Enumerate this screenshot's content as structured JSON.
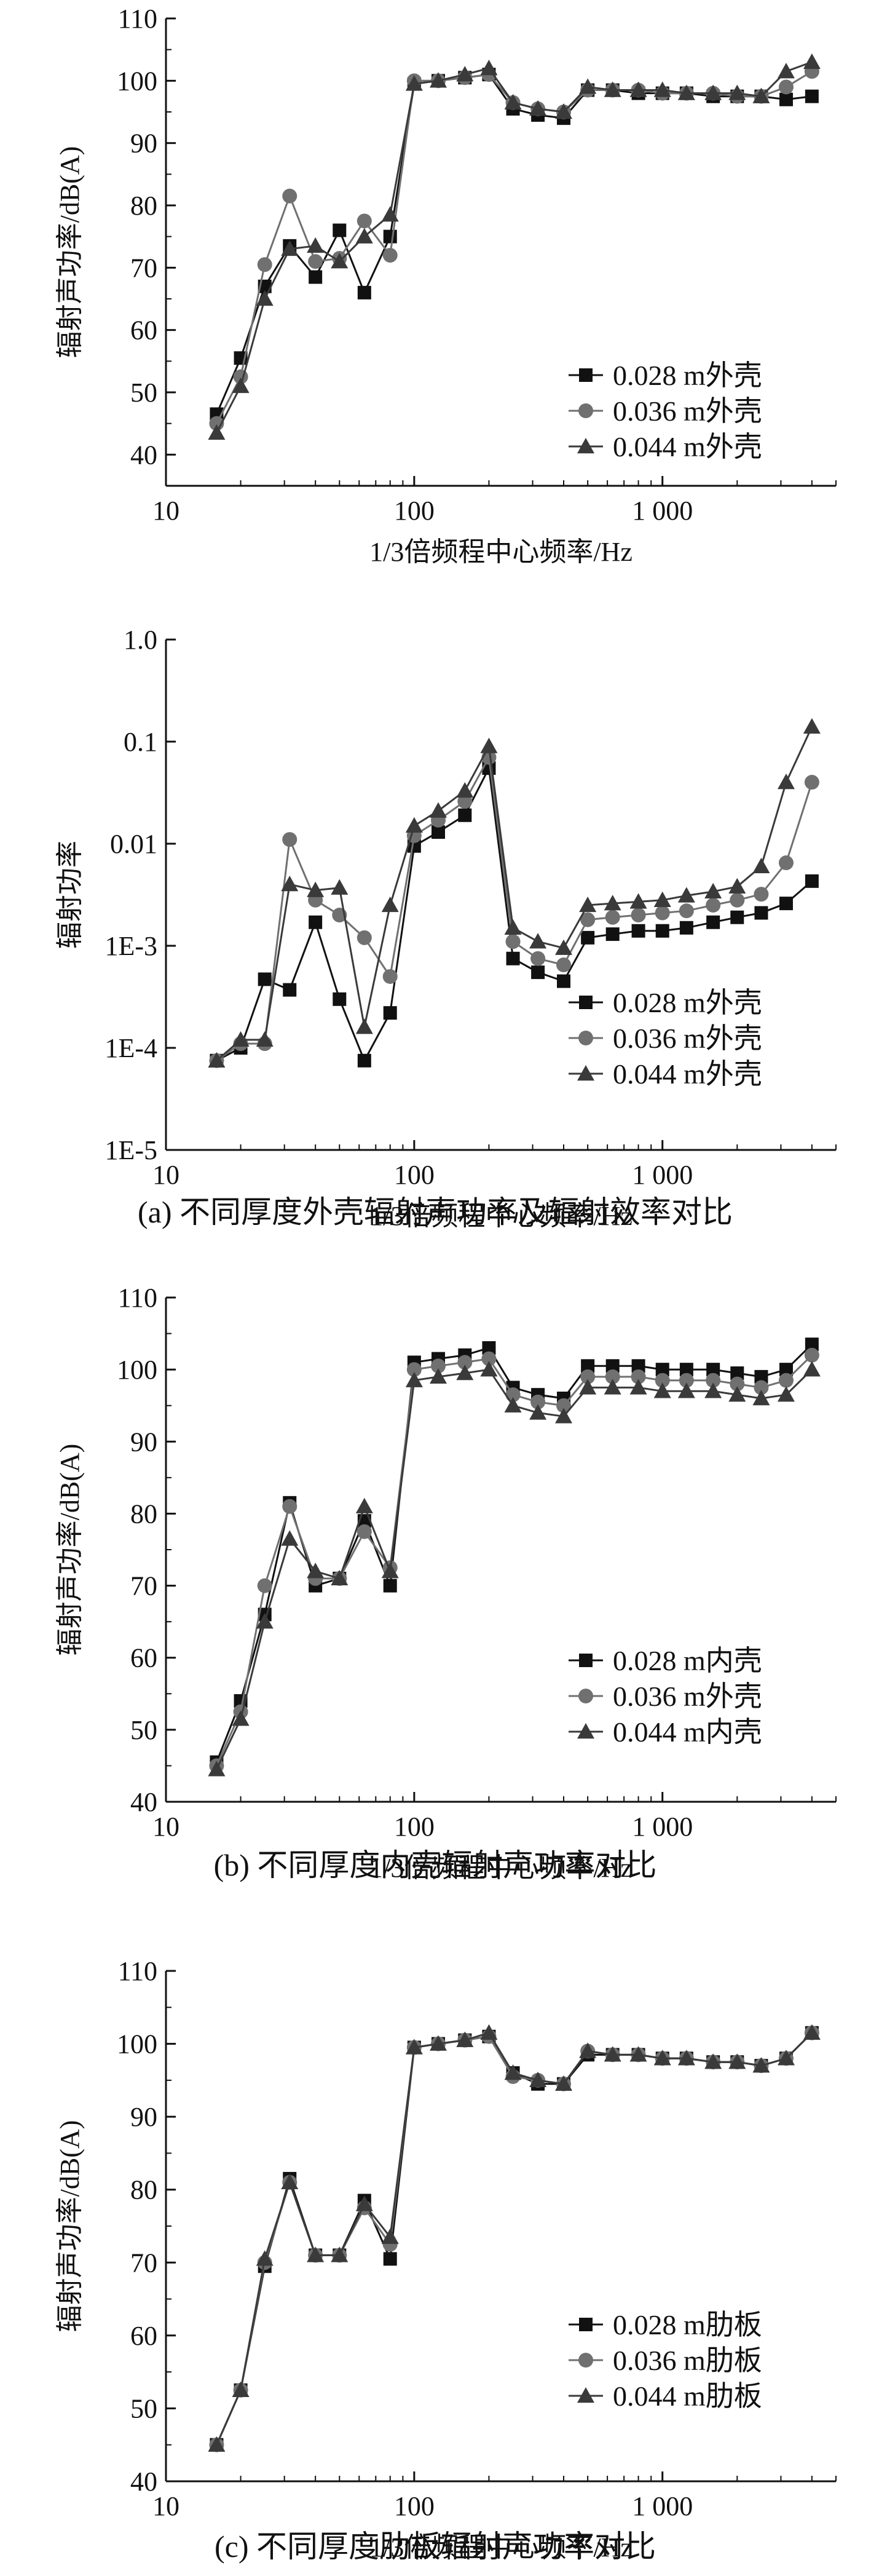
{
  "colors": {
    "axis": "#111111",
    "series_0028": "#111111",
    "series_0036": "#707070",
    "series_0044": "#3a3a3a"
  },
  "x_tick_labels": [
    "10",
    "100",
    "1 000"
  ],
  "x_axis_label": "1/3倍频程中心频率/Hz",
  "captions": {
    "a": "(a) 不同厚度外壳辐射声功率及辐射效率对比",
    "b": "(b) 不同厚度内壳辐射声功率对比",
    "c": "(c) 不同厚度肋板辐射声功率对比"
  },
  "chart_data": [
    {
      "id": "a-power",
      "type": "line",
      "x_scale": "log",
      "xlim": [
        10,
        5000
      ],
      "ylim": [
        35,
        110
      ],
      "yticks": [
        40,
        50,
        60,
        70,
        80,
        90,
        100,
        110
      ],
      "ytick_labels": [
        "40",
        "50",
        "60",
        "70",
        "80",
        "90",
        "100",
        "110"
      ],
      "xlabel": "1/3倍频程中心频率/Hz",
      "ylabel": "辐射声功率/dB(A)",
      "legend_position": "bottom-right",
      "x": [
        16,
        20,
        25,
        31.5,
        40,
        50,
        63,
        80,
        100,
        125,
        160,
        200,
        250,
        315,
        400,
        500,
        630,
        800,
        1000,
        1250,
        1600,
        2000,
        2500,
        3150,
        4000
      ],
      "series": [
        {
          "name": "0.028 m外壳",
          "marker": "square",
          "values": [
            46.5,
            55.5,
            67,
            73.5,
            68.5,
            76,
            66,
            75,
            99.5,
            100,
            100.5,
            101,
            95.5,
            94.5,
            94,
            98.5,
            98.5,
            98,
            98,
            98,
            97.5,
            97.5,
            97.5,
            97,
            97.5
          ]
        },
        {
          "name": "0.036 m外壳",
          "marker": "circle",
          "values": [
            45,
            52.5,
            70.5,
            81.5,
            71,
            71.5,
            77.5,
            72,
            100,
            100,
            100.5,
            101,
            96.5,
            95.5,
            95,
            98.5,
            98.5,
            98.5,
            98,
            98,
            98,
            97.5,
            97.5,
            99,
            101.5
          ]
        },
        {
          "name": "0.044 m外壳",
          "marker": "triangle",
          "values": [
            43.5,
            51,
            65,
            73,
            73.5,
            71,
            75,
            78.5,
            99.5,
            100,
            101,
            102,
            96.5,
            95.5,
            95,
            99,
            98.5,
            98.5,
            98.5,
            98,
            98,
            98,
            97.5,
            101.5,
            103
          ]
        }
      ]
    },
    {
      "id": "a-efficiency",
      "type": "line",
      "x_scale": "log",
      "y_scale": "log",
      "xlim": [
        10,
        5000
      ],
      "ylim": [
        1e-05,
        1.0
      ],
      "yticks": [
        1e-05,
        0.0001,
        0.001,
        0.01,
        0.1,
        1.0
      ],
      "ytick_labels": [
        "1E-5",
        "1E-4",
        "1E-3",
        "0.01",
        "0.1",
        "1.0"
      ],
      "xlabel": "1/3倍频程中心频率/Hz",
      "ylabel": "辐射功率",
      "legend_position": "bottom-right",
      "x": [
        16,
        20,
        25,
        31.5,
        40,
        50,
        63,
        80,
        100,
        125,
        160,
        200,
        250,
        315,
        400,
        500,
        630,
        800,
        1000,
        1250,
        1600,
        2000,
        2500,
        3150,
        4000
      ],
      "series": [
        {
          "name": "0.028 m外壳",
          "marker": "square",
          "values": [
            7.5e-05,
            0.0001,
            0.00047,
            0.00037,
            0.0017,
            0.0003,
            7.5e-05,
            0.00022,
            0.0095,
            0.013,
            0.019,
            0.055,
            0.00075,
            0.00055,
            0.00045,
            0.0012,
            0.0013,
            0.0014,
            0.0014,
            0.0015,
            0.0017,
            0.0019,
            0.0021,
            0.0026,
            0.0043
          ]
        },
        {
          "name": "0.036 m外壳",
          "marker": "circle",
          "values": [
            7.5e-05,
            0.00011,
            0.00011,
            0.011,
            0.0028,
            0.002,
            0.0012,
            0.0005,
            0.012,
            0.017,
            0.026,
            0.07,
            0.0011,
            0.00075,
            0.00065,
            0.0018,
            0.0019,
            0.002,
            0.0021,
            0.0022,
            0.0025,
            0.0028,
            0.0032,
            0.0065,
            0.04
          ]
        },
        {
          "name": "0.044 m外壳",
          "marker": "triangle",
          "values": [
            7.5e-05,
            0.00012,
            0.00012,
            0.004,
            0.0035,
            0.0037,
            0.00016,
            0.0025,
            0.015,
            0.021,
            0.033,
            0.09,
            0.0015,
            0.0011,
            0.00095,
            0.0025,
            0.0026,
            0.0027,
            0.0028,
            0.0031,
            0.0034,
            0.0038,
            0.006,
            0.04,
            0.14
          ]
        }
      ]
    },
    {
      "id": "b-power",
      "type": "line",
      "x_scale": "log",
      "xlim": [
        10,
        5000
      ],
      "ylim": [
        40,
        110
      ],
      "yticks": [
        40,
        50,
        60,
        70,
        80,
        90,
        100,
        110
      ],
      "ytick_labels": [
        "40",
        "50",
        "60",
        "70",
        "80",
        "90",
        "100",
        "110"
      ],
      "xlabel": "1/3倍频程中心频率/Hz",
      "ylabel": "辐射声功率/dB(A)",
      "legend_position": "bottom-right",
      "x": [
        16,
        20,
        25,
        31.5,
        40,
        50,
        63,
        80,
        100,
        125,
        160,
        200,
        250,
        315,
        400,
        500,
        630,
        800,
        1000,
        1250,
        1600,
        2000,
        2500,
        3150,
        4000
      ],
      "series": [
        {
          "name": "0.028 m内壳",
          "marker": "square",
          "values": [
            45.5,
            54,
            66,
            81.5,
            70,
            71,
            79,
            70,
            101,
            101.5,
            102,
            103,
            97.5,
            96.5,
            96,
            100.5,
            100.5,
            100.5,
            100,
            100,
            100,
            99.5,
            99,
            100,
            103.5
          ]
        },
        {
          "name": "0.036 m外壳",
          "marker": "circle",
          "values": [
            45,
            52.5,
            70,
            81,
            71,
            71,
            77.5,
            72.5,
            100,
            100.5,
            101,
            101.5,
            96.5,
            95.5,
            95,
            99,
            99,
            99,
            98.5,
            98.5,
            98.5,
            98,
            97.5,
            98.5,
            102
          ]
        },
        {
          "name": "0.044 m内壳",
          "marker": "triangle",
          "values": [
            44.5,
            51.5,
            65,
            76.5,
            72,
            71,
            81,
            72,
            98.5,
            99,
            99.5,
            100,
            95,
            94,
            93.5,
            97.5,
            97.5,
            97.5,
            97,
            97,
            97,
            96.5,
            96,
            96.5,
            100
          ]
        }
      ]
    },
    {
      "id": "c-power",
      "type": "line",
      "x_scale": "log",
      "xlim": [
        10,
        5000
      ],
      "ylim": [
        40,
        110
      ],
      "yticks": [
        40,
        50,
        60,
        70,
        80,
        90,
        100,
        110
      ],
      "ytick_labels": [
        "40",
        "50",
        "60",
        "70",
        "80",
        "90",
        "100",
        "110"
      ],
      "xlabel": "1/3倍频程中心频率/Hz",
      "ylabel": "辐射声功率/dB(A)",
      "legend_position": "bottom-right",
      "x": [
        16,
        20,
        25,
        31.5,
        40,
        50,
        63,
        80,
        100,
        125,
        160,
        200,
        250,
        315,
        400,
        500,
        630,
        800,
        1000,
        1250,
        1600,
        2000,
        2500,
        3150,
        4000
      ],
      "series": [
        {
          "name": "0.028 m肋板",
          "marker": "square",
          "values": [
            45,
            52.5,
            69.5,
            81.5,
            71,
            71,
            78.5,
            70.5,
            99.5,
            100,
            100.5,
            101,
            96,
            94.5,
            94.5,
            98.5,
            98.5,
            98.5,
            98,
            98,
            97.5,
            97.5,
            97,
            98,
            101.5
          ]
        },
        {
          "name": "0.036 m肋板",
          "marker": "circle",
          "values": [
            45,
            52.5,
            70,
            81,
            71,
            71,
            77.5,
            72.5,
            99.5,
            100,
            100.5,
            101,
            95.5,
            95,
            94.5,
            99,
            98.5,
            98.5,
            98,
            98,
            97.5,
            97.5,
            97,
            98,
            101.5
          ]
        },
        {
          "name": "0.044 m肋板",
          "marker": "triangle",
          "values": [
            45,
            52.5,
            70.5,
            81,
            71,
            71,
            78,
            73.5,
            99.5,
            100,
            100.5,
            101.5,
            96,
            95,
            94.5,
            99,
            98.5,
            98.5,
            98,
            98,
            97.5,
            97.5,
            97,
            98,
            101.5
          ]
        }
      ]
    }
  ]
}
